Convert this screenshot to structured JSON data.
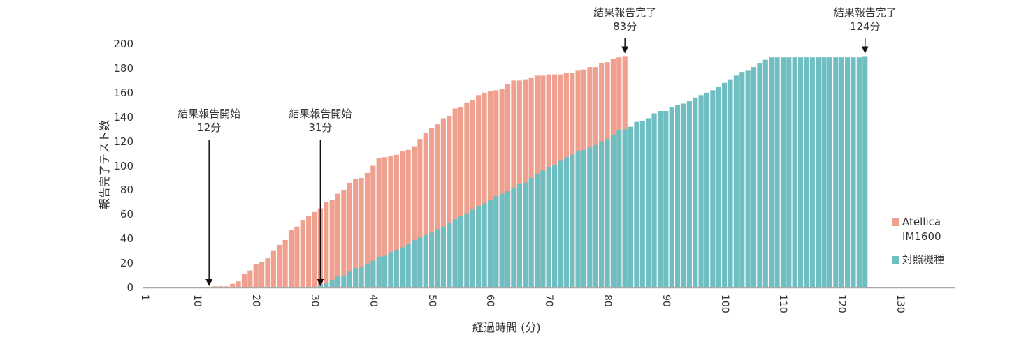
{
  "chart_data": {
    "type": "bar",
    "title": "",
    "xlabel": "経過時間 (分)",
    "ylabel": "報告完了テスト数",
    "ylim": [
      0,
      200
    ],
    "xlim": [
      1,
      137
    ],
    "yticks": [
      0,
      20,
      40,
      60,
      80,
      100,
      120,
      140,
      160,
      180,
      200
    ],
    "xticks": [
      1,
      10,
      20,
      30,
      40,
      50,
      60,
      70,
      80,
      90,
      100,
      110,
      120,
      130
    ],
    "grid": false,
    "legend_position": "right",
    "overlay": true,
    "series": [
      {
        "name": "Atellica IM1600",
        "color": "#f0a08f",
        "start_minute": 1,
        "values": [
          0,
          0,
          0,
          0,
          0,
          0,
          0,
          0,
          0,
          0,
          0,
          0,
          1,
          1,
          1,
          3,
          5,
          11,
          14,
          19,
          21,
          24,
          30,
          35,
          39,
          47,
          50,
          55,
          59,
          62,
          65,
          70,
          72,
          77,
          80,
          86,
          89,
          90,
          94,
          100,
          106,
          107,
          108,
          109,
          112,
          113,
          116,
          122,
          127,
          131,
          134,
          139,
          141,
          147,
          148,
          152,
          154,
          158,
          160,
          161,
          162,
          163,
          167,
          170,
          170,
          171,
          172,
          174,
          174,
          175,
          175,
          175,
          176,
          176,
          178,
          179,
          181,
          181,
          184,
          185,
          188,
          189,
          190
        ]
      },
      {
        "name": "対照機種",
        "color": "#6fbec1",
        "start_minute": 31,
        "values": [
          2,
          4,
          6,
          9,
          10,
          13,
          16,
          17,
          19,
          22,
          25,
          26,
          29,
          31,
          33,
          36,
          39,
          41,
          43,
          45,
          48,
          50,
          53,
          56,
          59,
          61,
          64,
          67,
          69,
          72,
          75,
          77,
          79,
          82,
          85,
          86,
          90,
          93,
          96,
          99,
          101,
          104,
          107,
          109,
          112,
          113,
          115,
          117,
          120,
          122,
          125,
          129,
          130,
          132,
          136,
          137,
          139,
          143,
          145,
          145,
          148,
          150,
          151,
          153,
          156,
          158,
          160,
          162,
          165,
          168,
          171,
          174,
          177,
          178,
          181,
          184,
          187,
          189,
          189,
          189,
          189,
          189,
          189,
          189,
          189,
          189,
          189,
          189,
          189,
          189,
          189,
          189,
          189,
          190
        ]
      }
    ],
    "annotations": [
      {
        "text": "結果報告開始",
        "value": "12分",
        "minute": 12
      },
      {
        "text": "結果報告開始",
        "value": "31分",
        "minute": 31
      },
      {
        "text": "結果報告完了",
        "value": "83分",
        "minute": 83
      },
      {
        "text": "結果報告完了",
        "value": "124分",
        "minute": 124
      }
    ]
  },
  "legend": {
    "items": [
      {
        "label_line1": "Atellica",
        "label_line2": "IM1600",
        "color": "#f0a08f"
      },
      {
        "label_line1": "対照機種",
        "label_line2": "",
        "color": "#6fbec1"
      }
    ]
  },
  "axis": {
    "xlabel": "経過時間 (分)",
    "ylabel": "報告完了テスト数"
  }
}
